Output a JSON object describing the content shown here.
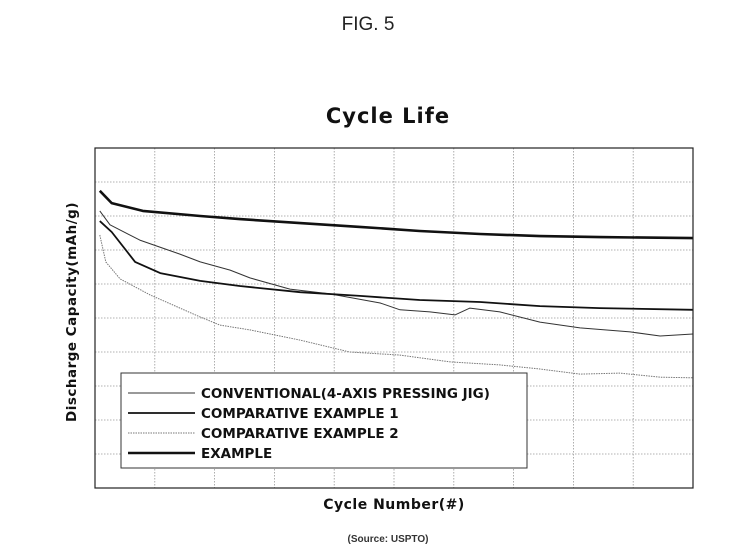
{
  "figure_label": "FIG. 5",
  "source": "(Source: USPTO)",
  "chart_data": {
    "type": "line",
    "title": "Cycle Life",
    "xlabel": "Cycle Number(#)",
    "ylabel": "Discharge Capacity(mAh/g)",
    "note": "no tick labels printed; values in gridline units",
    "xlim": [
      0,
      10
    ],
    "ylim": [
      0,
      10
    ],
    "grid": true,
    "legend_placement": "bottom-left",
    "series": [
      {
        "name": "CONVENTIONAL(4-AXIS PRESSING JIG)",
        "style": "thin",
        "color": "#333333",
        "x": [
          0.08,
          0.25,
          0.75,
          1.42,
          1.76,
          2.26,
          2.59,
          3.26,
          3.93,
          4.77,
          5.1,
          5.6,
          6.02,
          6.27,
          6.77,
          7.44,
          8.11,
          8.95,
          9.45,
          10.0
        ],
        "y": [
          8.15,
          7.74,
          7.29,
          6.88,
          6.65,
          6.41,
          6.18,
          5.85,
          5.71,
          5.44,
          5.24,
          5.18,
          5.09,
          5.29,
          5.18,
          4.88,
          4.71,
          4.59,
          4.47,
          4.53
        ]
      },
      {
        "name": "COMPARATIVE EXAMPLE 1",
        "style": "medium",
        "color": "#111111",
        "x": [
          0.08,
          0.28,
          0.67,
          1.09,
          1.76,
          2.42,
          3.43,
          4.43,
          5.43,
          6.44,
          7.44,
          8.44,
          10.0
        ],
        "y": [
          7.85,
          7.53,
          6.65,
          6.32,
          6.09,
          5.94,
          5.76,
          5.65,
          5.53,
          5.47,
          5.35,
          5.29,
          5.24
        ]
      },
      {
        "name": "COMPARATIVE EXAMPLE 2",
        "style": "dotted",
        "color": "#777777",
        "x": [
          0.08,
          0.18,
          0.42,
          0.92,
          1.76,
          2.09,
          2.59,
          3.43,
          4.26,
          5.1,
          5.94,
          6.77,
          7.44,
          8.11,
          8.78,
          9.45,
          10.0
        ],
        "y": [
          7.44,
          6.65,
          6.15,
          5.68,
          5.03,
          4.79,
          4.65,
          4.35,
          4.0,
          3.91,
          3.71,
          3.62,
          3.5,
          3.35,
          3.38,
          3.26,
          3.24
        ]
      },
      {
        "name": "EXAMPLE",
        "style": "thick",
        "color": "#111111",
        "x": [
          0.08,
          0.28,
          0.8,
          1.76,
          2.42,
          3.43,
          4.43,
          4.93,
          5.43,
          6.44,
          7.44,
          8.44,
          10.0
        ],
        "y": [
          8.74,
          8.38,
          8.15,
          8.0,
          7.91,
          7.79,
          7.68,
          7.62,
          7.56,
          7.47,
          7.41,
          7.38,
          7.35
        ]
      }
    ]
  }
}
